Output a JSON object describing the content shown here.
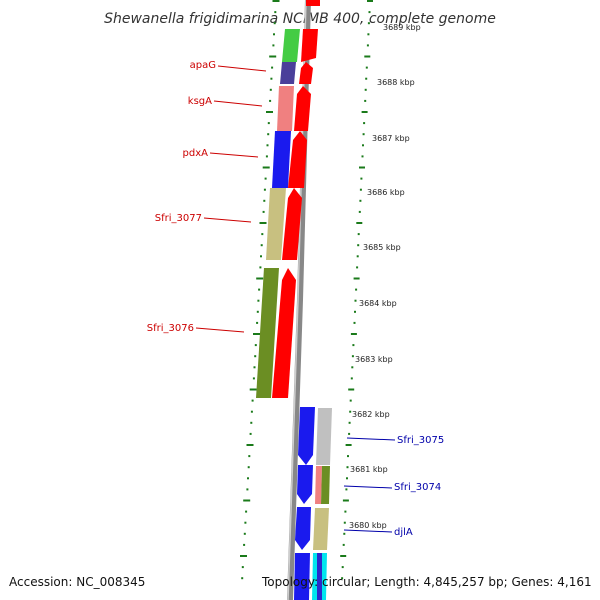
{
  "title": "Shewanella frigidimarina NCIMB 400, complete genome",
  "footer": {
    "accession": "Accession: NC_008345",
    "topology": "Topology: circular; Length: 4,845,257 bp; Genes: 4,161"
  },
  "scale_ticks": [
    {
      "label": "3689 kbp"
    },
    {
      "label": "3688 kbp"
    },
    {
      "label": "3687 kbp"
    },
    {
      "label": "3686 kbp"
    },
    {
      "label": "3685 kbp"
    },
    {
      "label": "3684 kbp"
    },
    {
      "label": "3683 kbp"
    },
    {
      "label": "3682 kbp"
    },
    {
      "label": "3681 kbp"
    },
    {
      "label": "3680 kbp"
    }
  ],
  "forward_genes": [
    {
      "name": "",
      "color": "#44cc44"
    },
    {
      "name": "apaG",
      "color": "#4a3f9a"
    },
    {
      "name": "ksgA",
      "color": "#f08080"
    },
    {
      "name": "pdxA",
      "color": "#1a1aee"
    },
    {
      "name": "Sfri_3077",
      "color": "#c8c080"
    },
    {
      "name": "Sfri_3076",
      "color": "#6b8e23"
    }
  ],
  "reverse_genes": [
    {
      "name": "Sfri_3075",
      "color": "#c0c0c0"
    },
    {
      "name": "Sfri_3074",
      "color": "#6b8e23"
    },
    {
      "name": "djlA",
      "color": "#c8c080"
    }
  ],
  "colors": {
    "cds_forward": "#ff0000",
    "cds_reverse": "#1a1aee",
    "backbone": "#888888",
    "tick_dots": "#1a7a1a"
  }
}
